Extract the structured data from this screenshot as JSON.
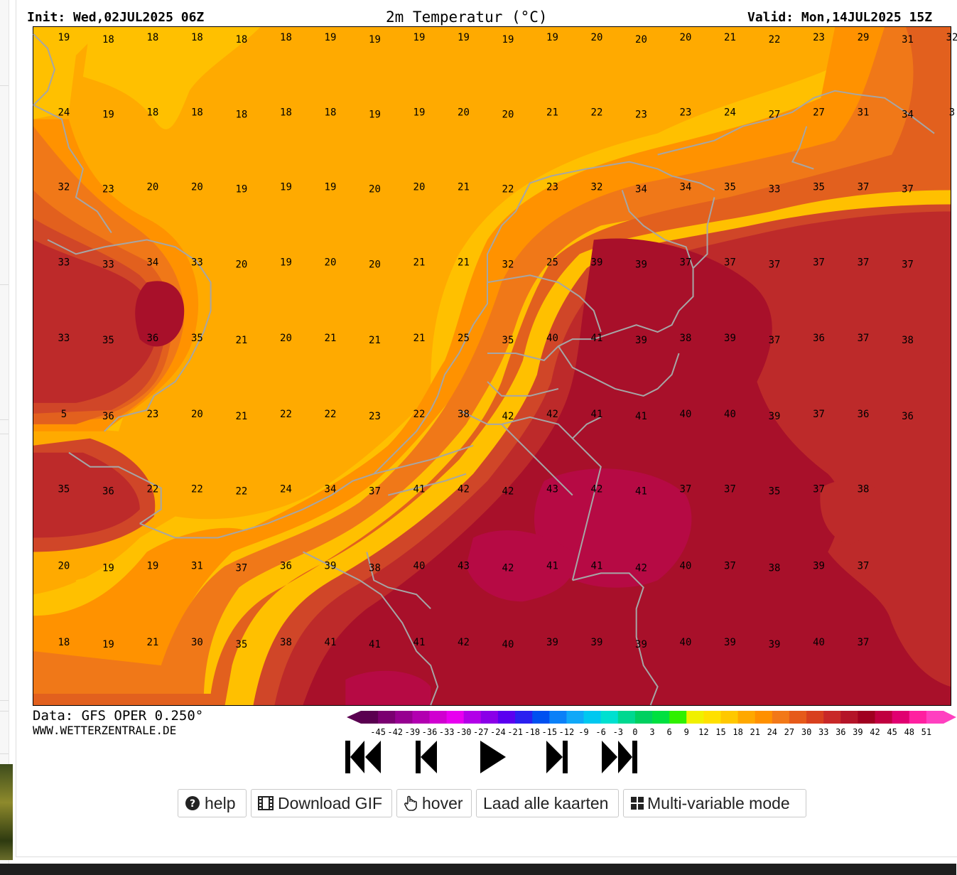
{
  "header": {
    "init": "Init: Wed,02JUL2025 06Z",
    "title": "2m Temperatur (°C)",
    "valid": "Valid: Mon,14JUL2025 15Z"
  },
  "footer": {
    "data_source": "Data: GFS OPER 0.250°",
    "website": "WWW.WETTERZENTRALE.DE"
  },
  "colors": {
    "t18": "#ffc000",
    "t21": "#ffaa00",
    "t24": "#ff9200",
    "t27": "#f07818",
    "t30": "#e2601e",
    "t33": "#d04628",
    "t36": "#bd2a2a",
    "t39": "#a8102a",
    "t42": "#b60a44",
    "coast": "#a6a6a6"
  },
  "scale": {
    "labels": [
      "-45",
      "-42",
      "-39",
      "-36",
      "-33",
      "-30",
      "-27",
      "-24",
      "-21",
      "-18",
      "-15",
      "-12",
      "-9",
      "-6",
      "-3",
      "0",
      "3",
      "6",
      "9",
      "12",
      "15",
      "18",
      "21",
      "24",
      "27",
      "30",
      "33",
      "36",
      "39",
      "42",
      "45",
      "48",
      "51"
    ],
    "colors": [
      "#5a0050",
      "#7a0070",
      "#960090",
      "#b200b0",
      "#d000d0",
      "#e800f0",
      "#b200e8",
      "#8a00e8",
      "#5a00f0",
      "#2a20f0",
      "#0050f0",
      "#0a80f8",
      "#10a8f8",
      "#00c8f0",
      "#00e0d0",
      "#00d890",
      "#00d060",
      "#00e040",
      "#30f000",
      "#f0f000",
      "#ffe000",
      "#ffc800",
      "#ffa800",
      "#ff9000",
      "#f27818",
      "#e65a1a",
      "#d8401e",
      "#c82828",
      "#b41428",
      "#a00020",
      "#c00040",
      "#e00070",
      "#ff20a0",
      "#ff40c0"
    ]
  },
  "controls": {
    "first": "first-frame-icon",
    "prev": "previous-frame-icon",
    "play": "play-icon",
    "next": "next-frame-icon",
    "last": "last-frame-icon"
  },
  "buttons": {
    "help": "help",
    "download_gif": "Download GIF",
    "hover": "hover",
    "load_all": "Laad alle kaarten",
    "multi_variable": "Multi-variable mode"
  },
  "map_values": [
    [
      "19",
      "18",
      "18",
      "18",
      "18",
      "18",
      "19",
      "19",
      "19",
      "19",
      "19",
      "19",
      "20",
      "20",
      "20",
      "21",
      "22",
      "23",
      "29",
      "31",
      "32"
    ],
    [
      "24",
      "19",
      "18",
      "18",
      "18",
      "18",
      "18",
      "19",
      "19",
      "20",
      "20",
      "21",
      "22",
      "23",
      "23",
      "24",
      "27",
      "27",
      "31",
      "34",
      "3"
    ],
    [
      "32",
      "23",
      "20",
      "20",
      "19",
      "19",
      "19",
      "20",
      "20",
      "21",
      "22",
      "23",
      "32",
      "34",
      "34",
      "35",
      "33",
      "35",
      "37",
      "37"
    ],
    [
      "33",
      "33",
      "34",
      "33",
      "20",
      "19",
      "20",
      "20",
      "21",
      "21",
      "32",
      "25",
      "39",
      "39",
      "37",
      "37",
      "37",
      "37",
      "37",
      "37"
    ],
    [
      "33",
      "35",
      "36",
      "35",
      "21",
      "20",
      "21",
      "21",
      "21",
      "25",
      "35",
      "40",
      "41",
      "39",
      "38",
      "39",
      "37",
      "36",
      "37",
      "38"
    ],
    [
      "5",
      "36",
      "23",
      "20",
      "21",
      "22",
      "22",
      "23",
      "22",
      "38",
      "42",
      "42",
      "41",
      "41",
      "40",
      "40",
      "39",
      "37",
      "36",
      "36"
    ],
    [
      "35",
      "36",
      "22",
      "22",
      "22",
      "24",
      "34",
      "37",
      "41",
      "42",
      "42",
      "43",
      "42",
      "41",
      "37",
      "37",
      "35",
      "37",
      "38"
    ],
    [
      "20",
      "19",
      "19",
      "31",
      "37",
      "36",
      "39",
      "38",
      "40",
      "43",
      "42",
      "41",
      "41",
      "42",
      "40",
      "37",
      "38",
      "39",
      "37"
    ],
    [
      "18",
      "19",
      "21",
      "30",
      "35",
      "38",
      "41",
      "41",
      "41",
      "42",
      "40",
      "39",
      "39",
      "39",
      "40",
      "39",
      "39",
      "40",
      "37"
    ]
  ]
}
